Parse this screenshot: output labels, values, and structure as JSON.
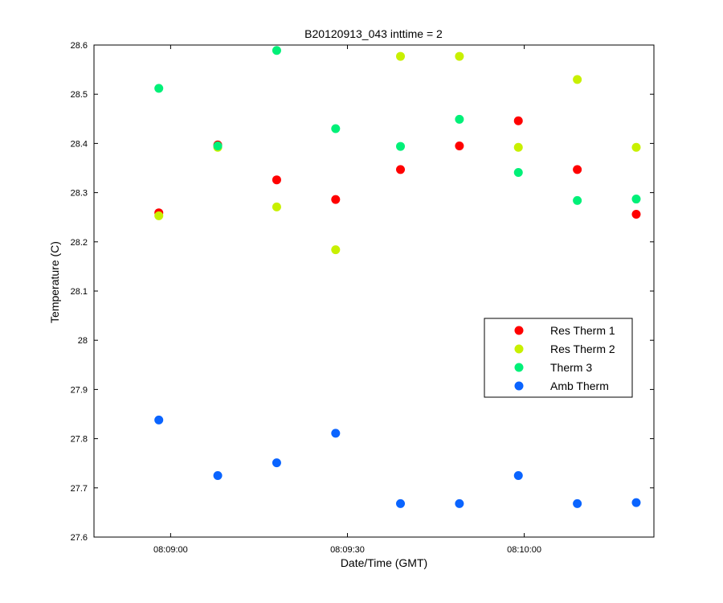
{
  "chart_data": {
    "type": "scatter",
    "title": "B20120913_043 inttime = 2",
    "xlabel": "Date/Time (GMT)",
    "ylabel": "Temperature (C)",
    "xlim": [
      "08:08:47",
      "08:10:22"
    ],
    "ylim": [
      27.6,
      28.6
    ],
    "x_ticks": [
      "08:09:00",
      "08:09:30",
      "08:10:00"
    ],
    "y_ticks": [
      "27.6",
      "27.7",
      "27.8",
      "27.9",
      "28",
      "28.1",
      "28.2",
      "28.3",
      "28.4",
      "28.5",
      "28.6"
    ],
    "x": [
      "08:08:58",
      "08:09:08",
      "08:09:18",
      "08:09:28",
      "08:09:39",
      "08:09:49",
      "08:09:59",
      "08:10:09",
      "08:10:19"
    ],
    "grid": false,
    "legend_position": "lower-right",
    "series": [
      {
        "name": "Res Therm 1",
        "color": "#ff0000",
        "values": [
          28.259,
          28.397,
          28.326,
          28.286,
          28.347,
          28.395,
          28.446,
          28.347,
          28.256
        ]
      },
      {
        "name": "Res Therm 2",
        "color": "#c8f000",
        "values": [
          28.253,
          28.392,
          28.271,
          28.184,
          28.577,
          28.577,
          28.392,
          28.53,
          28.392
        ]
      },
      {
        "name": "Therm 3",
        "color": "#00f078",
        "values": [
          28.512,
          28.395,
          28.589,
          28.43,
          28.394,
          28.449,
          28.341,
          28.284,
          28.287
        ]
      },
      {
        "name": "Amb Therm",
        "color": "#0a64ff",
        "values": [
          27.838,
          27.725,
          27.751,
          27.811,
          27.668,
          27.668,
          27.725,
          27.668,
          27.67
        ]
      }
    ]
  }
}
